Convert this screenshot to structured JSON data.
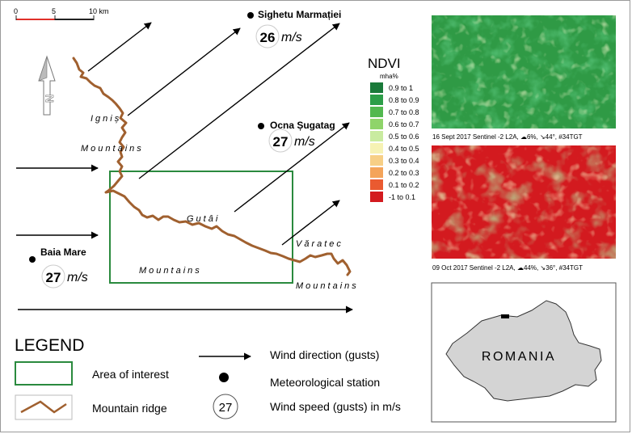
{
  "scale_bar": {
    "tick0": "0",
    "tick1": "5",
    "tick2": "10 km"
  },
  "north_arrow": {
    "letter": "N"
  },
  "stations": [
    {
      "name": "Sighetu Marmației",
      "speed": "26",
      "unit": "m/s"
    },
    {
      "name": "Ocna Șugatag",
      "speed": "27",
      "unit": "m/s"
    },
    {
      "name": "Baia Mare",
      "speed": "27",
      "unit": "m/s"
    }
  ],
  "mountains": {
    "ignis": "Igniș",
    "ignis_sub": "Mountains",
    "gutai": "Gutâi",
    "gutai_sub": "Mountains",
    "varatec": "Văratec",
    "varatec_sub": "Mountains"
  },
  "ndvi_legend": {
    "title": "NDVI",
    "unit": "mha%",
    "classes": [
      {
        "label": "0.9 to 1",
        "color": "#1a7a3a"
      },
      {
        "label": "0.8 to 0.9",
        "color": "#2c9e48"
      },
      {
        "label": "0.7 to 0.8",
        "color": "#52b84f"
      },
      {
        "label": "0.6 to 0.7",
        "color": "#8fd46a"
      },
      {
        "label": "0.5 to 0.6",
        "color": "#c9eba0"
      },
      {
        "label": "0.4 to 0.5",
        "color": "#f6f2b4"
      },
      {
        "label": "0.3 to 0.4",
        "color": "#f7cf86"
      },
      {
        "label": "0.2 to 0.3",
        "color": "#f4a45a"
      },
      {
        "label": "0.1 to 0.2",
        "color": "#ea5a30"
      },
      {
        "label": "-1 to 0.1",
        "color": "#d31a1f"
      }
    ]
  },
  "images": [
    {
      "caption": "16 Sept 2017 Sentinel -2 L2A,  ☁6%, ↘44°, #34TGT"
    },
    {
      "caption": "09 Oct 2017 Sentinel -2 L2A,  ☁44%, ↘36°, #34TGT"
    }
  ],
  "inset": {
    "country": "ROMANIA"
  },
  "legend": {
    "title": "LEGEND",
    "area_of_interest": "Area of interest",
    "mountain_ridge": "Mountain ridge",
    "wind_direction": "Wind direction (gusts)",
    "met_station": "Meteorological station",
    "wind_speed_example": "27",
    "wind_speed": "Wind speed (gusts) in m/s"
  },
  "colors": {
    "ridge": "#a0602f",
    "aoi": "#2a8a3e",
    "scale_red": "#e0302a",
    "inset_fill": "#d4d4d4"
  }
}
